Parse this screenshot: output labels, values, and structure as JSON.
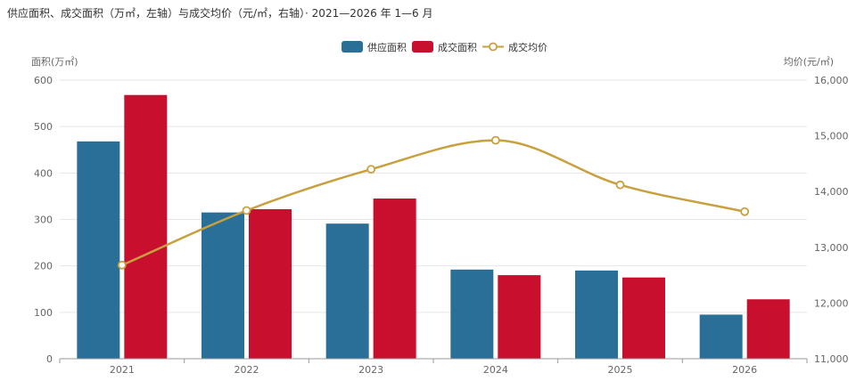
{
  "chart_data": {
    "type": "bar",
    "title": "供应面积、成交面积（万㎡，左轴）与成交均价（元/㎡，右轴）· 2021—2026 年 1—6 月",
    "categories": [
      "2021",
      "2022",
      "2023",
      "2024",
      "2025",
      "2026"
    ],
    "series": [
      {
        "name": "供应面积",
        "type": "bar",
        "axis": "left",
        "values": [
          468,
          315,
          291,
          192,
          190,
          95
        ]
      },
      {
        "name": "成交面积",
        "type": "bar",
        "axis": "left",
        "values": [
          568,
          322,
          345,
          180,
          175,
          128
        ]
      },
      {
        "name": "成交均价",
        "type": "line",
        "axis": "right",
        "values": [
          12680,
          13660,
          14400,
          14920,
          14120,
          13640
        ]
      }
    ],
    "ylabel": "面积(万㎡)",
    "y2label": "均价(元/㎡)",
    "ylim": [
      0,
      600
    ],
    "y2lim": [
      11000,
      16000
    ],
    "yticks": [
      0,
      100,
      200,
      300,
      400,
      500,
      600
    ],
    "y2ticks": [
      "11,000",
      "12,000",
      "13,000",
      "14,000",
      "15,000",
      "16,000"
    ],
    "legend_position": "top-center",
    "grid": true,
    "colors": {
      "supply": "#2a6f97",
      "deal": "#c8102e",
      "price": "#c9a03f",
      "grid": "#e6e6e6",
      "axis": "#999999"
    }
  }
}
